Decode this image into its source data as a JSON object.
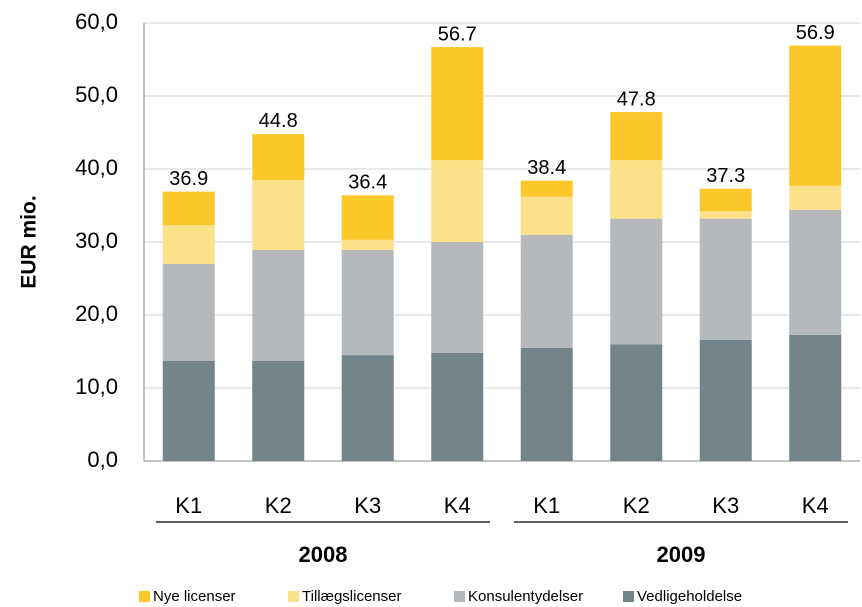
{
  "chart_data": {
    "type": "stacked_bar",
    "y_label": "EUR mio.",
    "categories": [
      "K1",
      "K2",
      "K3",
      "K4",
      "K1",
      "K2",
      "K3",
      "K4"
    ],
    "groups": [
      "2008",
      "2009"
    ],
    "series": [
      {
        "name": "Nye licenser",
        "color": "#fcc72a",
        "values": [
          4.6,
          6.3,
          6.1,
          15.5,
          2.2,
          6.6,
          3.1,
          19.2
        ]
      },
      {
        "name": "Tillægslicenser",
        "color": "#fde08a",
        "values": [
          5.3,
          9.6,
          1.4,
          11.2,
          5.2,
          8.0,
          1.0,
          3.3
        ]
      },
      {
        "name": "Konsulentydelser",
        "color": "#b5b9bc",
        "values": [
          13.3,
          15.2,
          14.4,
          15.2,
          15.5,
          17.2,
          16.6,
          17.1
        ]
      },
      {
        "name": "Vedligeholdelse",
        "color": "#738589",
        "values": [
          13.7,
          13.7,
          14.5,
          14.8,
          15.5,
          16.0,
          16.6,
          17.3
        ]
      }
    ],
    "totals": [
      36.9,
      44.8,
      36.4,
      56.7,
      38.4,
      47.8,
      37.3,
      56.9
    ],
    "ylim": [
      0,
      60
    ],
    "yticks": [
      {
        "value": 0,
        "label": "0,0"
      },
      {
        "value": 10,
        "label": "10,0"
      },
      {
        "value": 20,
        "label": "20,0"
      },
      {
        "value": 30,
        "label": "30,0"
      },
      {
        "value": 40,
        "label": "40,0"
      },
      {
        "value": 50,
        "label": "50,0"
      },
      {
        "value": 60,
        "label": "60,0"
      }
    ],
    "grid": true
  }
}
